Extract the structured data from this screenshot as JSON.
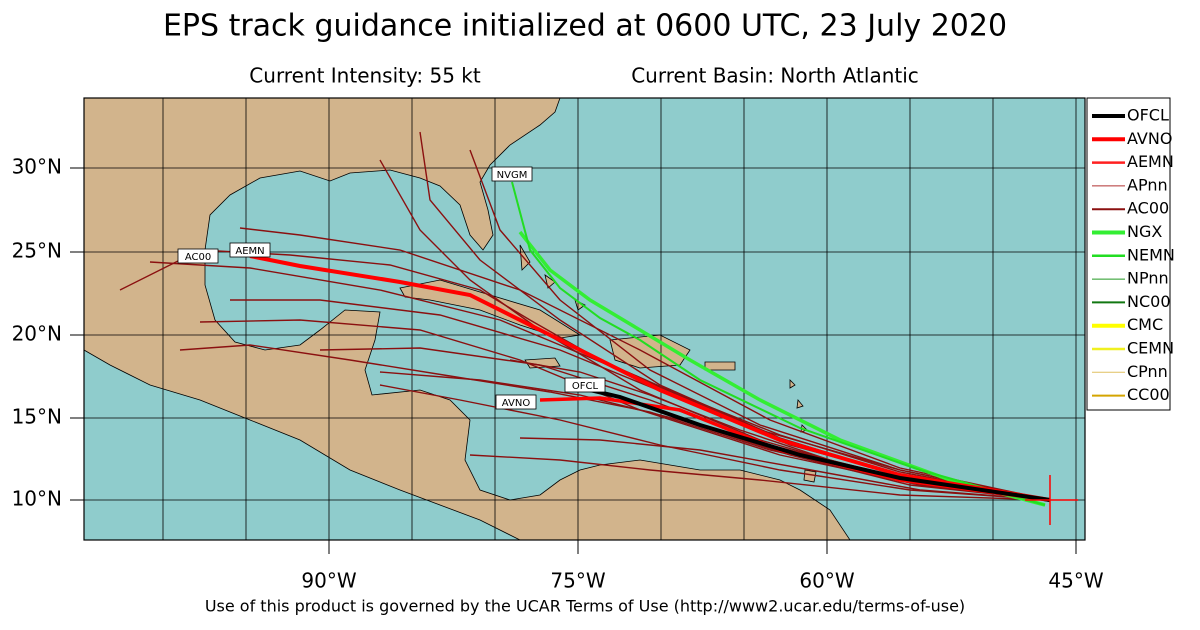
{
  "header": {
    "title": "EPS track guidance initialized at 0600 UTC, 23 July 2020",
    "intensity": "Current Intensity: 55 kt",
    "basin": "Current Basin: North Atlantic"
  },
  "map": {
    "lat_labels": [
      "30°N",
      "25°N",
      "20°N",
      "15°N",
      "10°N"
    ],
    "lon_labels": [
      "90°W",
      "75°W",
      "60°W",
      "45°W"
    ],
    "track_labels": [
      "NVGM",
      "AC00",
      "AEMN",
      "OFCL",
      "AVNO"
    ]
  },
  "legend": [
    {
      "name": "OFCL",
      "color": "#000000"
    },
    {
      "name": "AVNO",
      "color": "#ff0000"
    },
    {
      "name": "AEMN",
      "color": "#ff2020"
    },
    {
      "name": "APnn",
      "color": "#b03030"
    },
    {
      "name": "AC00",
      "color": "#8b1010"
    },
    {
      "name": "NGX",
      "color": "#33ee33"
    },
    {
      "name": "NEMN",
      "color": "#22dd22"
    },
    {
      "name": "NPnn",
      "color": "#229922"
    },
    {
      "name": "NC00",
      "color": "#117711"
    },
    {
      "name": "CMC",
      "color": "#ffff00"
    },
    {
      "name": "CEMN",
      "color": "#f0f020"
    },
    {
      "name": "CPnn",
      "color": "#e0c060"
    },
    {
      "name": "CC00",
      "color": "#d4a500"
    }
  ],
  "footer": {
    "terms": "Use of this product is governed by the UCAR Terms of Use (http://www2.ucar.edu/terms-of-use)"
  }
}
